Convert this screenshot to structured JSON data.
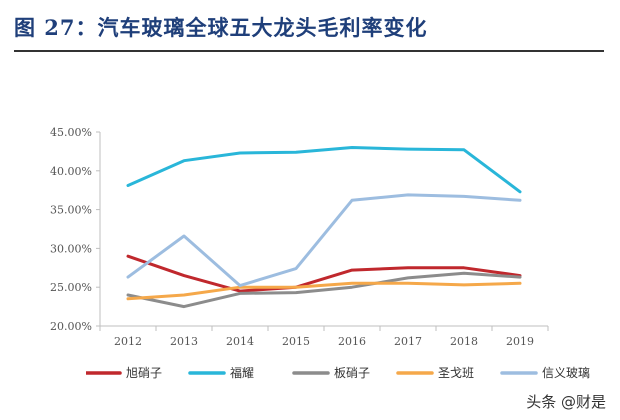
{
  "header": {
    "title": "图 27：汽车玻璃全球五大龙头毛利率变化"
  },
  "watermark": "头条 @财是",
  "chart_data": {
    "type": "line",
    "title": "",
    "xlabel": "",
    "ylabel": "",
    "categories": [
      "2012",
      "2013",
      "2014",
      "2015",
      "2016",
      "2017",
      "2018",
      "2019"
    ],
    "yticks": [
      "20.00%",
      "25.00%",
      "30.00%",
      "35.00%",
      "40.00%",
      "45.00%"
    ],
    "ylim": [
      20,
      45
    ],
    "grid": false,
    "legend_position": "bottom",
    "series": [
      {
        "name": "旭硝子",
        "color": "#c0282d",
        "values": [
          29.0,
          26.5,
          24.5,
          25.0,
          27.2,
          27.5,
          27.5,
          26.5
        ]
      },
      {
        "name": "福耀",
        "color": "#29b6d9",
        "values": [
          38.1,
          41.3,
          42.3,
          42.4,
          43.0,
          42.8,
          42.7,
          37.3
        ]
      },
      {
        "name": "板硝子",
        "color": "#8c8c8c",
        "values": [
          24.0,
          22.5,
          24.2,
          24.3,
          25.0,
          26.2,
          26.8,
          26.3
        ]
      },
      {
        "name": "圣戈班",
        "color": "#f5a84a",
        "values": [
          23.5,
          24.0,
          25.0,
          25.0,
          25.5,
          25.5,
          25.3,
          25.5
        ]
      },
      {
        "name": "信义玻璃",
        "color": "#9dbde0",
        "values": [
          26.3,
          31.6,
          25.2,
          27.4,
          36.2,
          36.9,
          36.7,
          36.2
        ]
      }
    ]
  }
}
